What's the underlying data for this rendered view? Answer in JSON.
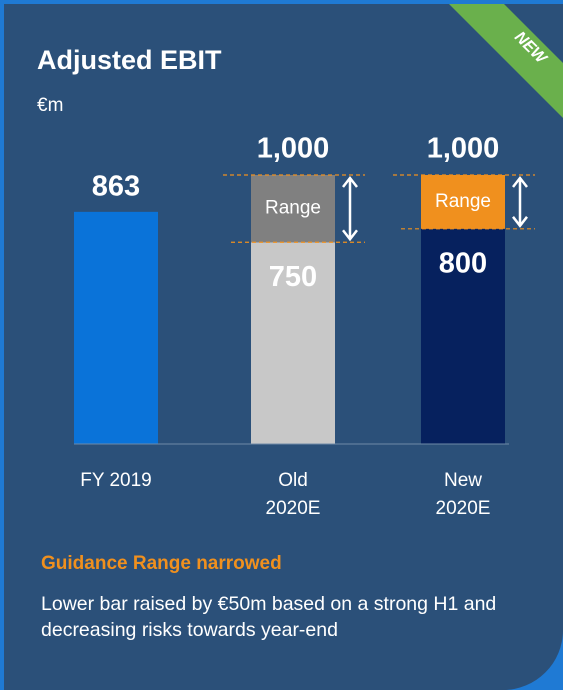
{
  "chart_data": {
    "type": "bar",
    "title": "Adjusted EBIT",
    "unit": "€m",
    "badge": "NEW",
    "categories": [
      "FY 2019",
      "Old 2020E",
      "New 2020E"
    ],
    "series": [
      {
        "values": [
          863,
          750,
          800
        ],
        "colors": [
          "#0a73d9",
          "#c8c8c8",
          "#06215e"
        ]
      },
      {
        "name": "Range",
        "values": [
          null,
          250,
          200
        ],
        "colors": [
          null,
          "#808080",
          "#f0901e"
        ]
      }
    ],
    "upper_bounds": {
      "values": [
        null,
        1000,
        1000
      ],
      "value_labels": [
        null,
        "1,000",
        "1,000"
      ]
    },
    "ylim": [
      0,
      1000
    ],
    "note_title": "Guidance Range narrowed",
    "note": "Lower bar raised by €50m based on a strong H1 and decreasing risks towards year-end"
  }
}
